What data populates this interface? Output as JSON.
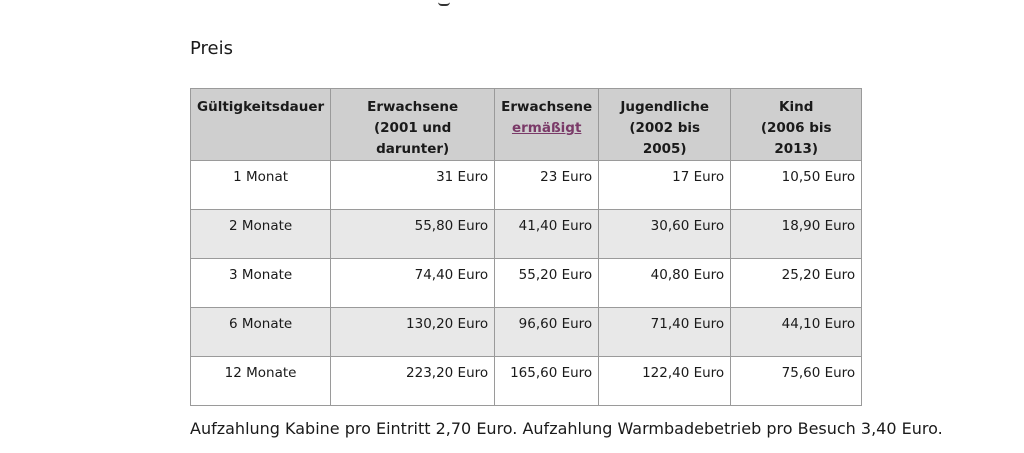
{
  "heading": "Preis",
  "table": {
    "headers": [
      {
        "line1": "Gültigkeitsdauer",
        "line2": ""
      },
      {
        "line1": "Erwachsene",
        "line2": "(2001 und darunter)"
      },
      {
        "line1": "Erwachsene",
        "line2_link": "ermäßigt"
      },
      {
        "line1": "Jugendliche",
        "line2": "(2002 bis 2005)"
      },
      {
        "line1": "Kind",
        "line2": "(2006 bis 2013)"
      }
    ],
    "rows": [
      {
        "duration": "1 Monat",
        "adult": "31 Euro",
        "reduced": "23 Euro",
        "youth": "17 Euro",
        "child": "10,50 Euro"
      },
      {
        "duration": "2 Monate",
        "adult": "55,80 Euro",
        "reduced": "41,40 Euro",
        "youth": "30,60 Euro",
        "child": "18,90 Euro"
      },
      {
        "duration": "3 Monate",
        "adult": "74,40 Euro",
        "reduced": "55,20 Euro",
        "youth": "40,80 Euro",
        "child": "25,20 Euro"
      },
      {
        "duration": "6 Monate",
        "adult": "130,20 Euro",
        "reduced": "96,60 Euro",
        "youth": "71,40 Euro",
        "child": "44,10 Euro"
      },
      {
        "duration": "12 Monate",
        "adult": "223,20 Euro",
        "reduced": "165,60 Euro",
        "youth": "122,40 Euro",
        "child": "75,60 Euro"
      }
    ]
  },
  "footnote": "Aufzahlung Kabine pro Eintritt 2,70 Euro. Aufzahlung Warmbadebetrieb pro Besuch 3,40 Euro.",
  "colors": {
    "header_bg": "#cfcfcf",
    "row_shaded_bg": "#e8e8e8",
    "border": "#9a9a9a",
    "link": "#7a3a68"
  }
}
